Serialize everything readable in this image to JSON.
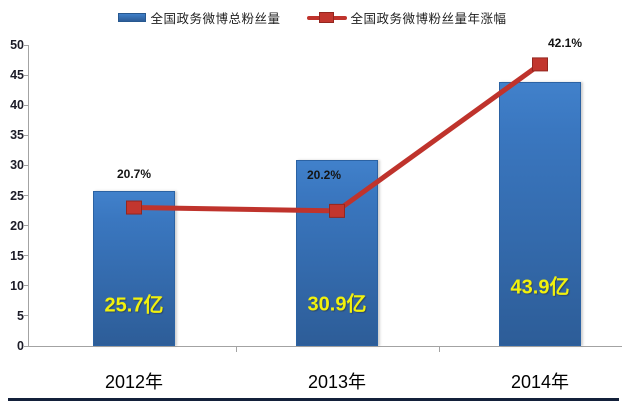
{
  "figure": {
    "background": "#ffffff",
    "bottom_rule_color": "#13203a"
  },
  "legend": {
    "position": "top",
    "items": [
      {
        "label": "全国政务微博总粉丝量",
        "marker": "bar-swatch-icon",
        "color": "#2e6db4"
      },
      {
        "label": "全国政务微博粉丝量年涨幅",
        "marker": "line-square-marker-icon",
        "color": "#bf332c"
      }
    ]
  },
  "chart_data": {
    "type": "bar",
    "subtype": "bar+line combo",
    "title": "",
    "xlabel": "",
    "ylabel": "",
    "categories": [
      "2012年",
      "2013年",
      "2014年"
    ],
    "series": [
      {
        "name": "全国政务微博总粉丝量",
        "type": "bar",
        "unit": "亿",
        "values": [
          25.7,
          30.9,
          43.9
        ],
        "data_labels": [
          "25.7亿",
          "30.9亿",
          "43.9亿"
        ],
        "axis": "left"
      },
      {
        "name": "全国政务微博粉丝量年涨幅",
        "type": "line",
        "unit": "%",
        "values": [
          20.7,
          20.2,
          42.1
        ],
        "data_labels": [
          "20.7%",
          "20.2%",
          "42.1%"
        ],
        "axis": "hidden-secondary"
      }
    ],
    "y_axis": {
      "min": 0,
      "max": 50,
      "tick_step": 5,
      "ticks": [
        0,
        5,
        10,
        15,
        20,
        25,
        30,
        35,
        40,
        45,
        50
      ]
    },
    "hidden_secondary_axis": {
      "min": 0,
      "max": 45
    },
    "grid": false,
    "legend_position": "top",
    "colors": {
      "bar_top": "#4181cb",
      "bar_bottom": "#2d5d98",
      "bar_border": "#2b62a3",
      "bar_label": "#f1f10d",
      "line": "#bf332c",
      "marker_border": "#93261f",
      "axis": "#a3a3a3",
      "tick_label": "#1c1c28"
    }
  }
}
